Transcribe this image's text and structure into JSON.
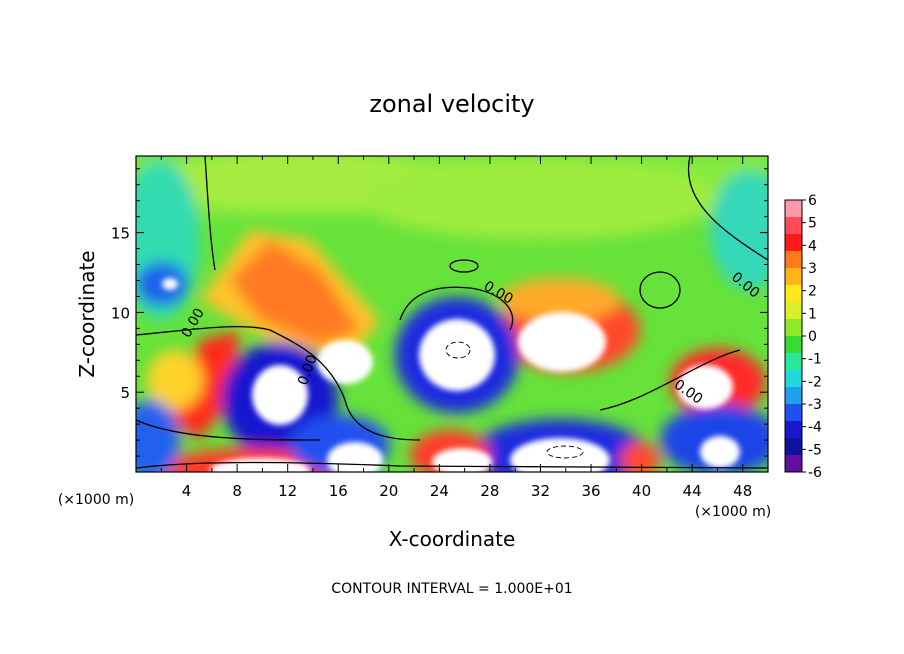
{
  "chart_data": {
    "type": "heatmap",
    "title": "zonal velocity",
    "xlabel": "X-coordinate",
    "ylabel": "Z-coordinate",
    "x_unit_label": "(×1000 m)",
    "z_unit_label": "(×1000 m)",
    "xlim": [
      0,
      50
    ],
    "ylim": [
      0,
      19.8
    ],
    "x_ticks": [
      "4",
      "8",
      "12",
      "16",
      "20",
      "24",
      "28",
      "32",
      "36",
      "40",
      "44",
      "48"
    ],
    "y_ticks": [
      "5",
      "10",
      "15"
    ],
    "colorbar": {
      "ticks": [
        "6",
        "5",
        "4",
        "3",
        "2",
        "1",
        "0",
        "-1",
        "-2",
        "-3",
        "-4",
        "-5",
        "-6"
      ],
      "colors": [
        "#ff9aaa",
        "#ff4a5a",
        "#ff1a1a",
        "#ff7a1a",
        "#ffb51a",
        "#ffe81a",
        "#d8f02a",
        "#90ea2a",
        "#36dc30",
        "#2ae89a",
        "#22d8dc",
        "#22a0f0",
        "#2050f0",
        "#1818d0",
        "#1212a0",
        "#6010a0"
      ]
    },
    "contour_labels": [
      "0.00",
      "0.00",
      "0.00",
      "0.00",
      "0.00"
    ],
    "contour_interval_text": "CONTOUR INTERVAL = 1.000E+01"
  }
}
